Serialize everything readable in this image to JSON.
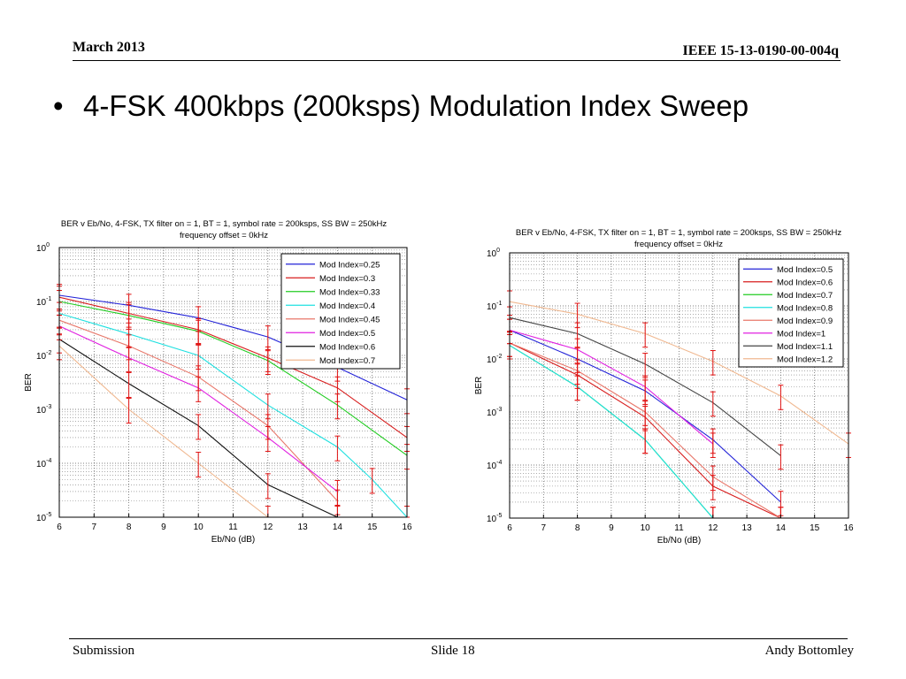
{
  "header": {
    "date": "March 2013",
    "doc_id": "IEEE 15-13-0190-00-004q"
  },
  "bullet": {
    "text": "4-FSK 400kbps (200ksps) Modulation Index Sweep"
  },
  "footer": {
    "left": "Submission",
    "center": "Slide 18",
    "right": "Andy Bottomley"
  },
  "chart_data": [
    {
      "type": "line",
      "title": "BER v Eb/No, 4-FSK, TX filter on = 1, BT = 1, symbol rate = 200ksps, SS BW = 250kHz",
      "subtitle": "frequency offset = 0kHz",
      "xlabel": "Eb/No (dB)",
      "ylabel": "BER",
      "x_ticks": [
        "6",
        "7",
        "8",
        "9",
        "10",
        "11",
        "12",
        "13",
        "14",
        "15",
        "16"
      ],
      "y_ticks": [
        {
          "base": "10",
          "exp": "0"
        },
        {
          "base": "10",
          "exp": "-1"
        },
        {
          "base": "10",
          "exp": "-2"
        },
        {
          "base": "10",
          "exp": "-3"
        },
        {
          "base": "10",
          "exp": "-4"
        },
        {
          "base": "10",
          "exp": "-5"
        }
      ],
      "xlim": [
        6,
        16
      ],
      "ylim": [
        1e-05,
        1
      ],
      "yscale": "log",
      "grid": true,
      "legend_position": "top-right",
      "series": [
        {
          "name": "Mod Index=0.25",
          "color": "#2323d8",
          "x": [
            6,
            8,
            10,
            12,
            14,
            16
          ],
          "y": [
            0.13,
            0.085,
            0.05,
            0.022,
            0.006,
            0.0015
          ]
        },
        {
          "name": "Mod Index=0.3",
          "color": "#d81e1e",
          "x": [
            6,
            8,
            10,
            12,
            14,
            16
          ],
          "y": [
            0.12,
            0.06,
            0.03,
            0.009,
            0.0025,
            0.0003
          ]
        },
        {
          "name": "Mod Index=0.33",
          "color": "#22cc22",
          "x": [
            6,
            8,
            10,
            12,
            14,
            16
          ],
          "y": [
            0.1,
            0.055,
            0.028,
            0.008,
            0.0012,
            0.00014
          ]
        },
        {
          "name": "Mod Index=0.4",
          "color": "#1fe0e0",
          "x": [
            6,
            8,
            10,
            12,
            14,
            15,
            16
          ],
          "y": [
            0.06,
            0.025,
            0.01,
            0.0012,
            0.0002,
            5e-05,
            1e-05
          ]
        },
        {
          "name": "Mod Index=0.45",
          "color": "#e8776a",
          "x": [
            6,
            8,
            10,
            12,
            14
          ],
          "y": [
            0.045,
            0.015,
            0.004,
            0.0005,
            2e-05
          ]
        },
        {
          "name": "Mod Index=0.5",
          "color": "#e020e0",
          "x": [
            6,
            8,
            10,
            12,
            14
          ],
          "y": [
            0.035,
            0.009,
            0.0025,
            0.0003,
            3e-05
          ]
        },
        {
          "name": "Mod Index=0.6",
          "color": "#111111",
          "x": [
            6,
            8,
            10,
            12,
            14
          ],
          "y": [
            0.02,
            0.003,
            0.0005,
            4e-05,
            1e-05
          ]
        },
        {
          "name": "Mod Index=0.7",
          "color": "#f0b890",
          "x": [
            6,
            8,
            10,
            12
          ],
          "y": [
            0.015,
            0.001,
            0.0001,
            1e-05
          ]
        }
      ]
    },
    {
      "type": "line",
      "title": "BER v Eb/No, 4-FSK, TX filter on = 1, BT = 1, symbol rate = 200ksps, SS BW = 250kHz",
      "subtitle": "frequency offset = 0kHz",
      "xlabel": "Eb/No (dB)",
      "ylabel": "BER",
      "x_ticks": [
        "6",
        "7",
        "8",
        "9",
        "10",
        "11",
        "12",
        "13",
        "14",
        "15",
        "16"
      ],
      "y_ticks": [
        {
          "base": "10",
          "exp": "0"
        },
        {
          "base": "10",
          "exp": "-1"
        },
        {
          "base": "10",
          "exp": "-2"
        },
        {
          "base": "10",
          "exp": "-3"
        },
        {
          "base": "10",
          "exp": "-4"
        },
        {
          "base": "10",
          "exp": "-5"
        }
      ],
      "xlim": [
        6,
        16
      ],
      "ylim": [
        1e-05,
        1
      ],
      "yscale": "log",
      "grid": true,
      "legend_position": "top-right",
      "series": [
        {
          "name": "Mod Index=0.5",
          "color": "#2323d8",
          "x": [
            6,
            8,
            10,
            12,
            14
          ],
          "y": [
            0.035,
            0.01,
            0.0025,
            0.0003,
            2e-05
          ]
        },
        {
          "name": "Mod Index=0.6",
          "color": "#d81e1e",
          "x": [
            6,
            8,
            10,
            12,
            14
          ],
          "y": [
            0.02,
            0.005,
            0.0008,
            4e-05,
            1e-05
          ]
        },
        {
          "name": "Mod Index=0.7",
          "color": "#22cc22",
          "x": [
            6,
            8,
            10,
            12
          ],
          "y": [
            0.018,
            0.003,
            0.0003,
            1e-05
          ]
        },
        {
          "name": "Mod Index=0.8",
          "color": "#1fe0e0",
          "x": [
            6,
            8,
            10,
            12
          ],
          "y": [
            0.018,
            0.003,
            0.0003,
            1e-05
          ]
        },
        {
          "name": "Mod Index=0.9",
          "color": "#e8776a",
          "x": [
            6,
            8,
            10,
            12,
            14
          ],
          "y": [
            0.02,
            0.006,
            0.001,
            6e-05,
            1e-05
          ]
        },
        {
          "name": "Mod Index=1",
          "color": "#e020e0",
          "x": [
            6,
            8,
            10,
            12
          ],
          "y": [
            0.035,
            0.015,
            0.003,
            0.00025
          ]
        },
        {
          "name": "Mod Index=1.1",
          "color": "#444444",
          "x": [
            6,
            8,
            10,
            12,
            14
          ],
          "y": [
            0.06,
            0.03,
            0.008,
            0.0015,
            0.00015
          ]
        },
        {
          "name": "Mod Index=1.2",
          "color": "#f0b890",
          "x": [
            6,
            8,
            10,
            12,
            14,
            16
          ],
          "y": [
            0.12,
            0.07,
            0.03,
            0.009,
            0.002,
            0.00025
          ]
        }
      ]
    }
  ]
}
